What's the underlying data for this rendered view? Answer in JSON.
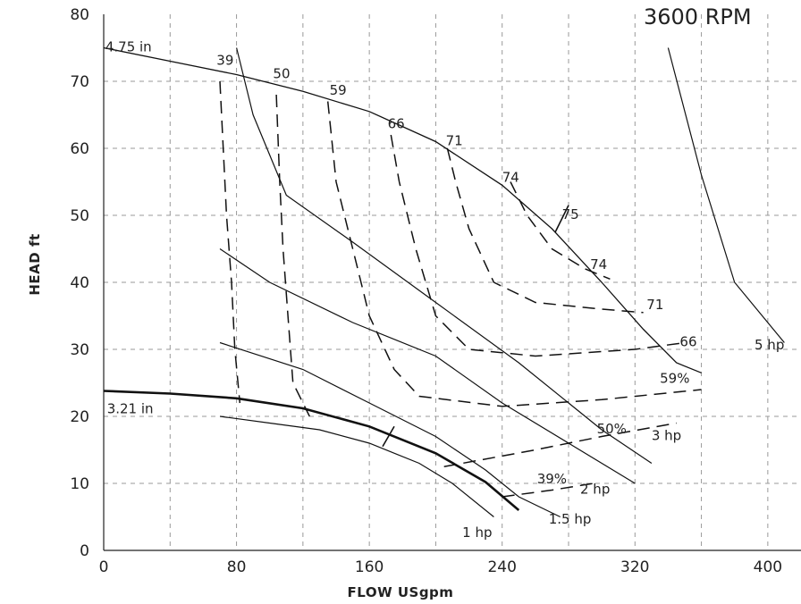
{
  "chart_data": {
    "type": "line",
    "title": "3600 RPM",
    "xlabel": "FLOW USgpm",
    "ylabel": "HEAD ft",
    "xlim": [
      0,
      420
    ],
    "ylim": [
      0,
      80
    ],
    "xticks": [
      0,
      80,
      160,
      240,
      320,
      400
    ],
    "yticks": [
      0,
      10,
      20,
      30,
      40,
      50,
      60,
      70,
      80
    ],
    "xgrid": [
      40,
      80,
      120,
      160,
      200,
      240,
      280,
      320,
      360,
      400
    ],
    "ygrid": [
      10,
      20,
      30,
      40,
      50,
      60,
      70
    ],
    "grid": true,
    "impeller_curves": [
      {
        "name": "4.75 in",
        "points": [
          [
            0,
            75
          ],
          [
            40,
            73
          ],
          [
            80,
            71
          ],
          [
            120,
            68.5
          ],
          [
            160,
            65.5
          ],
          [
            200,
            61
          ],
          [
            240,
            54.5
          ],
          [
            270,
            48
          ],
          [
            300,
            40
          ],
          [
            325,
            33
          ],
          [
            345,
            28
          ],
          [
            360,
            26.5
          ]
        ]
      },
      {
        "name": "3.21 in",
        "points": [
          [
            0,
            23.8
          ],
          [
            40,
            23.4
          ],
          [
            80,
            22.7
          ],
          [
            120,
            21.2
          ],
          [
            160,
            18.5
          ],
          [
            200,
            14.5
          ],
          [
            230,
            10.2
          ],
          [
            250,
            6
          ]
        ],
        "bold": true
      }
    ],
    "power_curves": [
      {
        "name": "5 hp",
        "points": [
          [
            340,
            75
          ],
          [
            360,
            56
          ],
          [
            380,
            40
          ],
          [
            410,
            31
          ]
        ]
      },
      {
        "name": "3 hp",
        "points": [
          [
            80,
            75
          ],
          [
            90,
            65
          ],
          [
            110,
            53
          ],
          [
            150,
            46
          ],
          [
            200,
            37
          ],
          [
            250,
            28
          ],
          [
            300,
            18
          ],
          [
            330,
            13
          ]
        ]
      },
      {
        "name": "2 hp",
        "points": [
          [
            70,
            45
          ],
          [
            100,
            40
          ],
          [
            150,
            34
          ],
          [
            200,
            29
          ],
          [
            240,
            22
          ],
          [
            280,
            16
          ],
          [
            320,
            10
          ]
        ]
      },
      {
        "name": "1.5 hp",
        "points": [
          [
            70,
            31
          ],
          [
            120,
            27
          ],
          [
            160,
            22
          ],
          [
            200,
            17
          ],
          [
            230,
            12
          ],
          [
            250,
            8
          ],
          [
            275,
            5
          ]
        ]
      },
      {
        "name": "1 hp",
        "points": [
          [
            70,
            20
          ],
          [
            100,
            19
          ],
          [
            130,
            18
          ],
          [
            160,
            16
          ],
          [
            190,
            13
          ],
          [
            210,
            10
          ],
          [
            235,
            5
          ]
        ]
      }
    ],
    "efficiency_curves": [
      {
        "name": "39",
        "points": [
          [
            70,
            70
          ],
          [
            72,
            60
          ],
          [
            74,
            50
          ],
          [
            77,
            40
          ],
          [
            79,
            30
          ],
          [
            82,
            22
          ]
        ]
      },
      {
        "name": "50",
        "points": [
          [
            104,
            68
          ],
          [
            106,
            55
          ],
          [
            108,
            45
          ],
          [
            111,
            35
          ],
          [
            114,
            25
          ],
          [
            124,
            20
          ]
        ]
      },
      {
        "name": "59",
        "points": [
          [
            135,
            67
          ],
          [
            140,
            55
          ],
          [
            150,
            45
          ],
          [
            160,
            35
          ],
          [
            175,
            27
          ],
          [
            190,
            23
          ],
          [
            240,
            21.5
          ],
          [
            300,
            22.5
          ],
          [
            360,
            24
          ]
        ]
      },
      {
        "name": "66",
        "points": [
          [
            173,
            62
          ],
          [
            178,
            55
          ],
          [
            188,
            45
          ],
          [
            200,
            35
          ],
          [
            220,
            30
          ],
          [
            260,
            29
          ],
          [
            320,
            30
          ],
          [
            350,
            31
          ]
        ]
      },
      {
        "name": "71",
        "points": [
          [
            207,
            60
          ],
          [
            212,
            55
          ],
          [
            220,
            48
          ],
          [
            235,
            40
          ],
          [
            260,
            37
          ],
          [
            300,
            36
          ],
          [
            325,
            35.5
          ]
        ]
      },
      {
        "name": "74",
        "points": [
          [
            245,
            55
          ],
          [
            255,
            50
          ],
          [
            270,
            45
          ],
          [
            290,
            42
          ],
          [
            305,
            40.5
          ]
        ]
      }
    ],
    "efficiency_labels": [
      "39",
      "50",
      "59",
      "66",
      "71",
      "74",
      "75",
      "74",
      "71",
      "66",
      "59%",
      "50%",
      "39%"
    ],
    "power_labels": [
      "5 hp",
      "3 hp",
      "2 hp",
      "1.5 hp",
      "1 hp"
    ],
    "diameter_labels": [
      "4.75 in",
      "3.21 in"
    ]
  }
}
